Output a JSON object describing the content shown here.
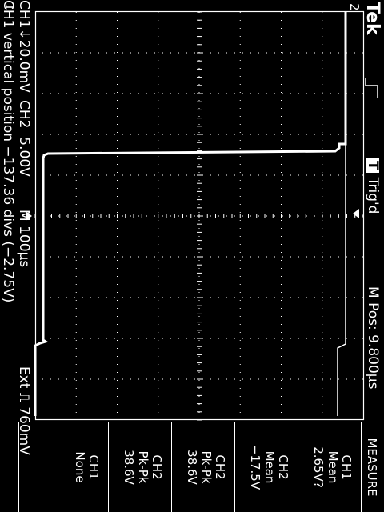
{
  "header": {
    "brand": "Tek",
    "trig_status_letter": "T",
    "trig_status": "Trig'd",
    "m_pos": "M Pos: 9.800µs"
  },
  "markers": {
    "ch1_ground": "1",
    "ch2_ground": "2"
  },
  "footer": {
    "ch1_scale": "CH1",
    "ch1_scale_value": "20.0mV",
    "ch2_scale": "CH2",
    "ch2_scale_value": "5.00V",
    "timebase": "M 100µs",
    "trigger": "Ext",
    "trigger_level": "760mV",
    "message": "CH1 vertical position −137.36 divs (−2.75V)"
  },
  "measure": {
    "title": "MEASURE",
    "items": [
      {
        "source": "CH1",
        "type": "Mean",
        "value": "2.65V?"
      },
      {
        "source": "CH2",
        "type": "Mean",
        "value": "−17.5V"
      },
      {
        "source": "CH2",
        "type": "Pk-Pk",
        "value": "38.6V"
      },
      {
        "source": "CH2",
        "type": "Pk-Pk",
        "value": "38.6V"
      },
      {
        "source": "CH1",
        "type": "None",
        "value": ""
      }
    ]
  },
  "colors": {
    "background": "#000000",
    "foreground": "#ffffff"
  },
  "icons": [
    "rising-edge-icon",
    "trigger-level-arrow-icon",
    "trigger-position-arrow-icon"
  ]
}
